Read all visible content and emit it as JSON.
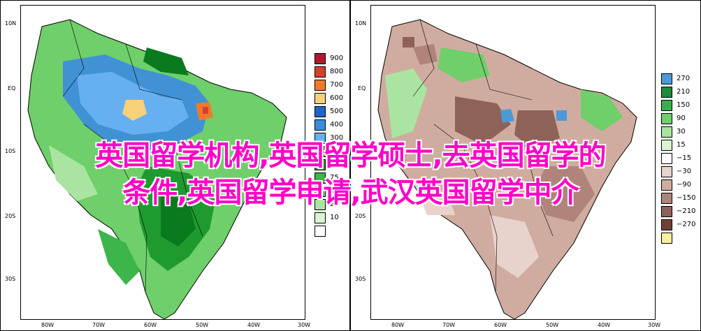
{
  "left_map": {
    "lat_ticks": [
      "10N",
      "EQ",
      "10S",
      "20S",
      "30S"
    ],
    "lon_ticks": [
      "80W",
      "70W",
      "60W",
      "50W",
      "40W",
      "30W"
    ],
    "legend": [
      {
        "label": "900",
        "color": "#b2182b"
      },
      {
        "label": "800",
        "color": "#d6402b"
      },
      {
        "label": "700",
        "color": "#f07a2a"
      },
      {
        "label": "600",
        "color": "#f7d07a"
      },
      {
        "label": "500",
        "color": "#1f64c8"
      },
      {
        "label": "400",
        "color": "#3b8be0"
      },
      {
        "label": "300",
        "color": "#66b0f2"
      },
      {
        "label": "200",
        "color": "#0a7a1e"
      },
      {
        "label": "100",
        "color": "#1f9a2f"
      },
      {
        "label": "75",
        "color": "#3cb54a"
      },
      {
        "label": "50",
        "color": "#6fcf6a"
      },
      {
        "label": "25",
        "color": "#a9e5a0"
      },
      {
        "label": "10",
        "color": "#d9f5d2"
      },
      {
        "label": "",
        "color": "#ffffff"
      }
    ]
  },
  "right_map": {
    "lat_ticks": [
      "10N",
      "EQ",
      "10S",
      "20S",
      "30S"
    ],
    "lon_ticks": [
      "80W",
      "70W",
      "60W",
      "50W",
      "40W",
      "30W"
    ],
    "legend": [
      {
        "label": "270",
        "color": "#4a9ad8"
      },
      {
        "label": "210",
        "color": "#1f8a3a"
      },
      {
        "label": "150",
        "color": "#3cad4e"
      },
      {
        "label": "90",
        "color": "#6fcf6a"
      },
      {
        "label": "30",
        "color": "#a9e5a0"
      },
      {
        "label": "15",
        "color": "#d9f5d2"
      },
      {
        "label": "−15",
        "color": "#ffffff"
      },
      {
        "label": "−30",
        "color": "#e8d3cc"
      },
      {
        "label": "−90",
        "color": "#d0aca0"
      },
      {
        "label": "−150",
        "color": "#b0847a"
      },
      {
        "label": "−210",
        "color": "#8e6258"
      },
      {
        "label": "−270",
        "color": "#6e4238"
      },
      {
        "label": "",
        "color": "#f7f0a0"
      }
    ]
  },
  "overlay": {
    "line1": "英国留学机构,英国留学硕士,去英国留学的",
    "line2": "条件,英国留学申请,武汉英国留学中介",
    "color": "#ff00c8"
  }
}
